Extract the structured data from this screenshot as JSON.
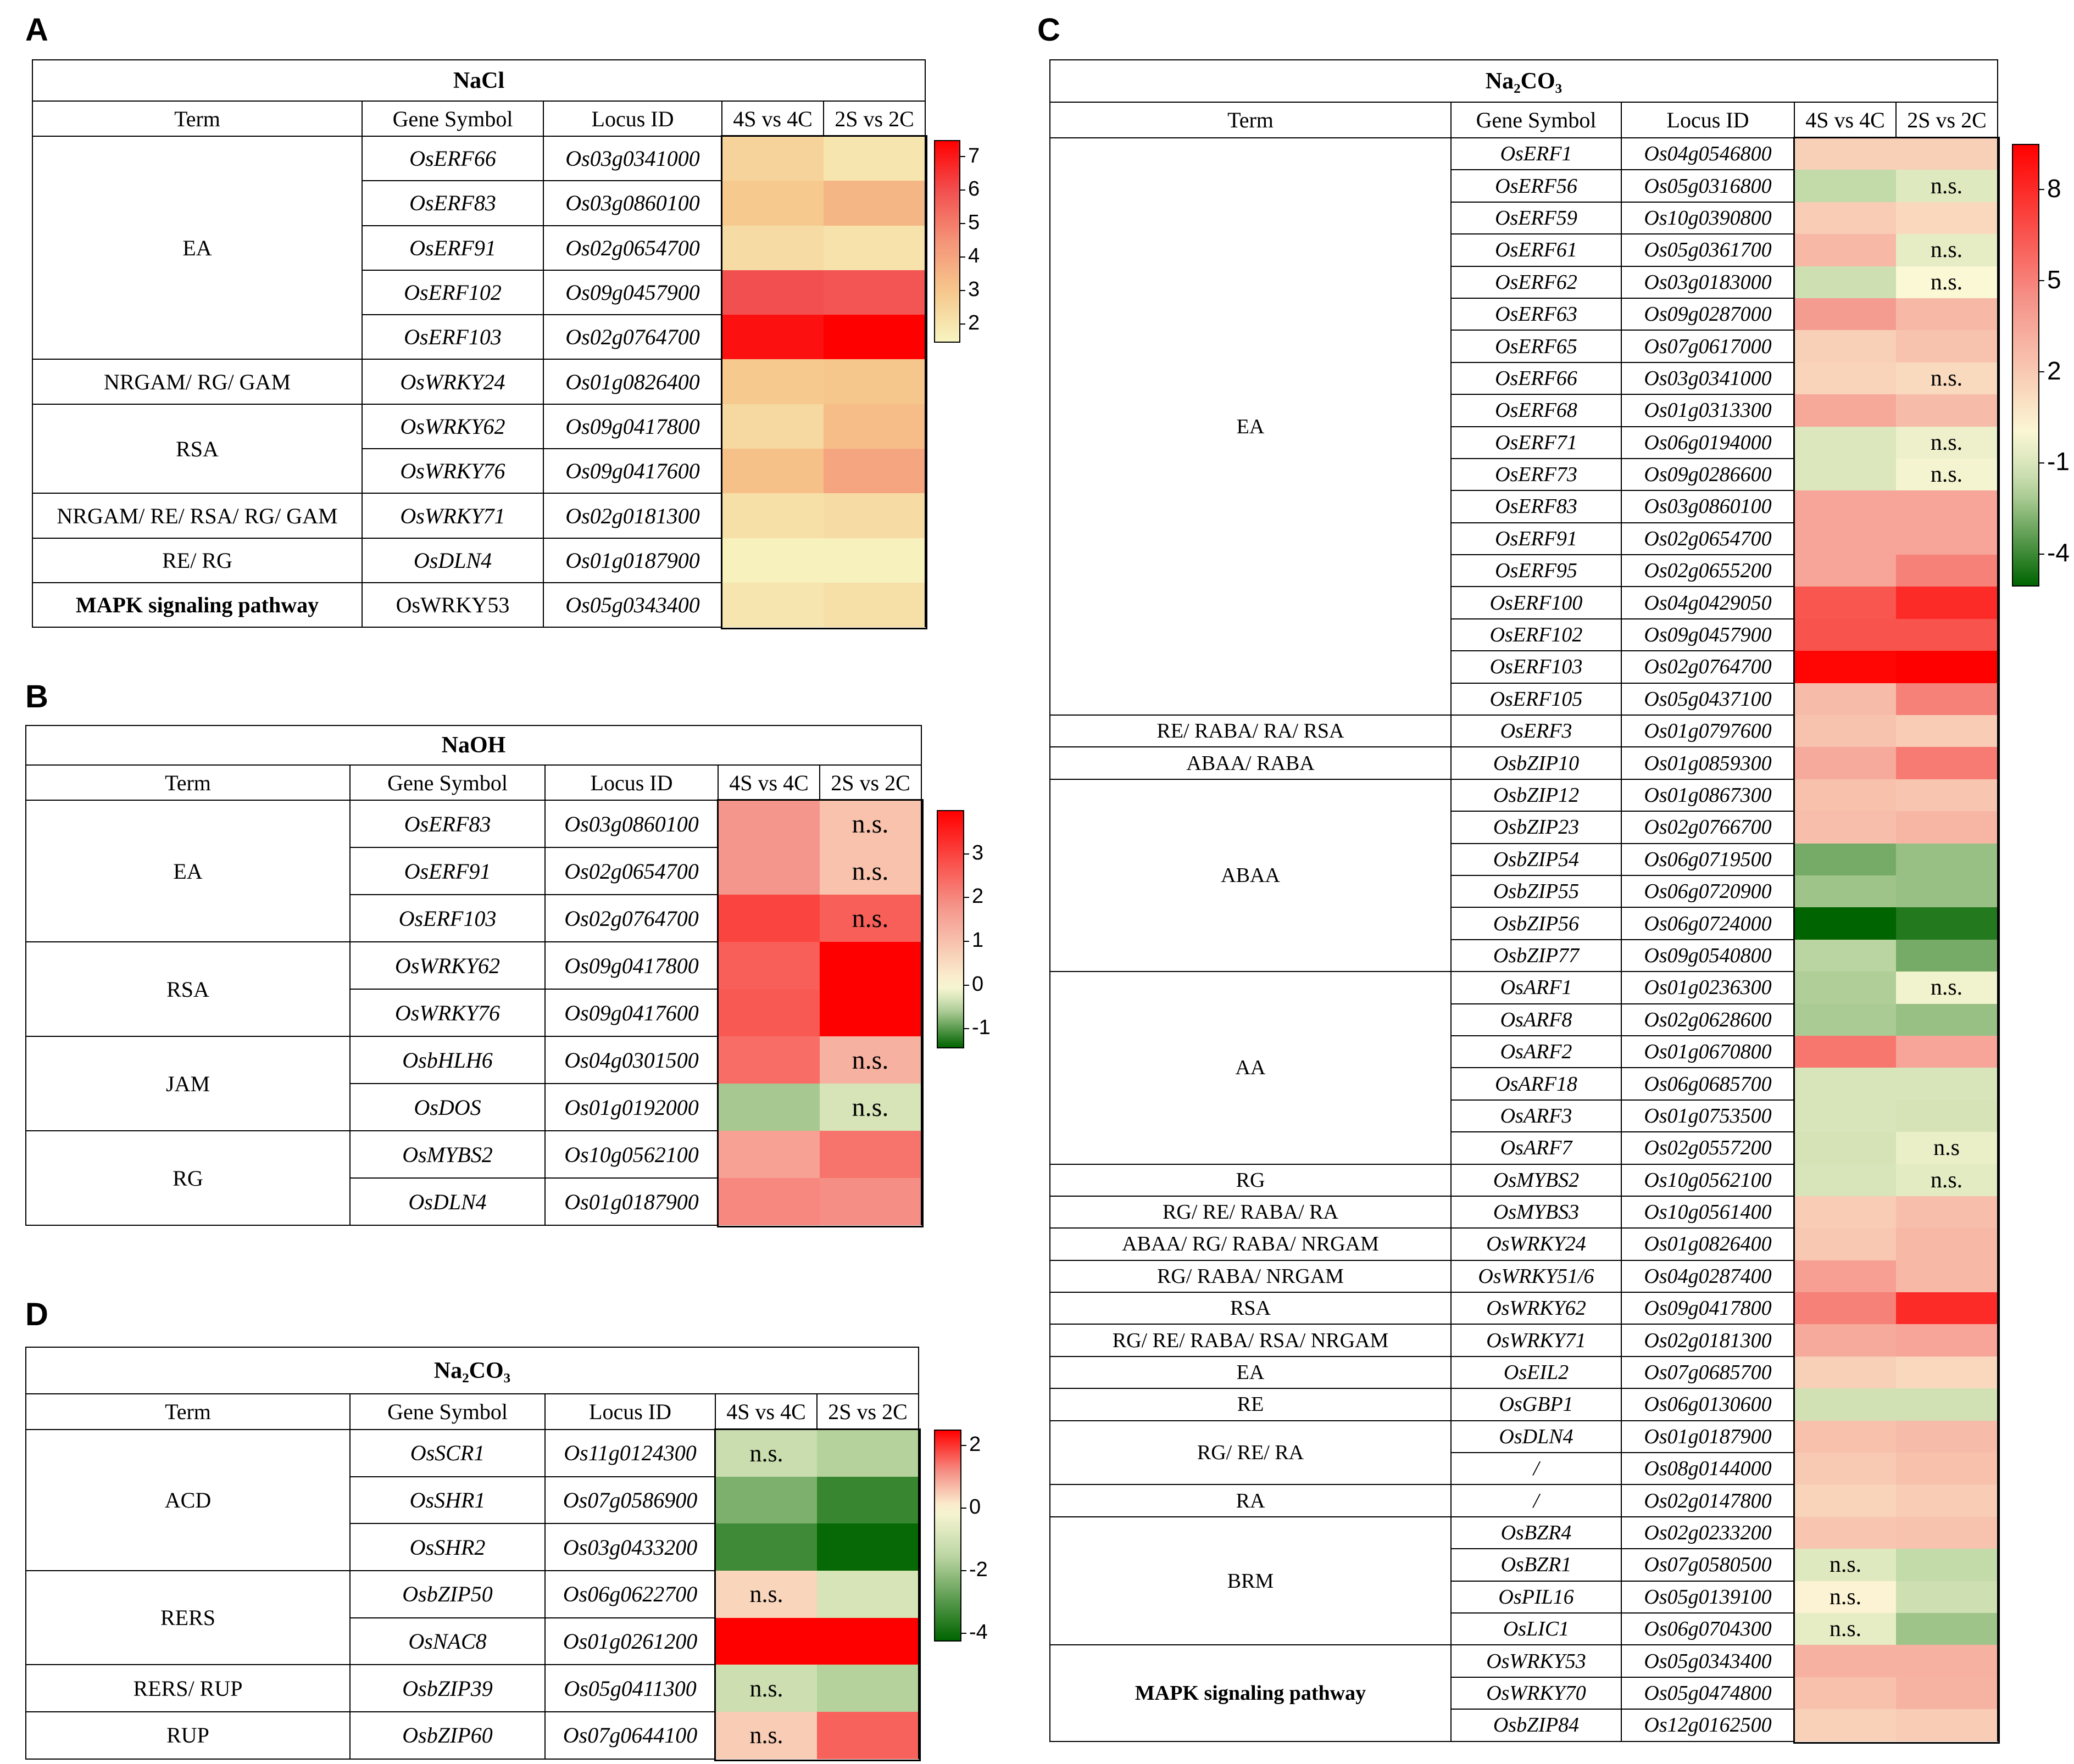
{
  "colors": {
    "pos_scale": [
      "#f7f4c0",
      "#f6c78c",
      "#f49478",
      "#f25050",
      "#ff0000"
    ],
    "div_high": "#ff0000",
    "div_mid": "#fbf8d6",
    "div_low": "#006400"
  },
  "header": {
    "term": "Term",
    "gene": "Gene Symbol",
    "locus": "Locus ID",
    "c1": "4S vs 4C",
    "c2": "2S vs 2C"
  },
  "chart_data": [
    {
      "panel": "A",
      "type": "heatmap",
      "title": "NaCl",
      "colorbar": {
        "ticks": [
          7,
          6,
          5,
          4,
          3,
          2
        ],
        "min": 1.5,
        "max": 7.5,
        "scale": "sequential"
      },
      "terms": [
        {
          "label": "EA",
          "span": 5
        },
        {
          "label": "NRGAM/ RG/ GAM",
          "span": 1
        },
        {
          "label": "RSA",
          "span": 2
        },
        {
          "label": "NRGAM/ RE/  RSA/ RG/ GAM",
          "span": 1
        },
        {
          "label": "RE/ RG",
          "span": 1
        },
        {
          "label": "MAPK signaling pathway",
          "span": 1,
          "bold": true
        }
      ],
      "rows": [
        {
          "gene": "OsERF66",
          "locus": "Os03g0341000",
          "v1": 2.6,
          "v2": 2.0
        },
        {
          "gene": "OsERF83",
          "locus": "Os03g0860100",
          "v1": 2.9,
          "v2": 3.5
        },
        {
          "gene": "OsERF91",
          "locus": "Os02g0654700",
          "v1": 2.3,
          "v2": 2.1
        },
        {
          "gene": "OsERF102",
          "locus": "Os09g0457900",
          "v1": 6.0,
          "v2": 5.9
        },
        {
          "gene": "OsERF103",
          "locus": "Os02g0764700",
          "v1": 7.2,
          "v2": 7.5
        },
        {
          "gene": "OsWRKY24",
          "locus": "Os01g0826400",
          "v1": 2.9,
          "v2": 3.0
        },
        {
          "gene": "OsWRKY62",
          "locus": "Os09g0417800",
          "v1": 2.4,
          "v2": 3.3
        },
        {
          "gene": "OsWRKY76",
          "locus": "Os09g0417600",
          "v1": 3.2,
          "v2": 4.0
        },
        {
          "gene": "OsWRKY71",
          "locus": "Os02g0181300",
          "v1": 2.2,
          "v2": 2.3
        },
        {
          "gene": "OsDLN4",
          "locus": "Os01g0187900",
          "v1": 1.6,
          "v2": 1.6
        },
        {
          "gene": "OsWRKY53",
          "locus": "Os05g0343400",
          "v1": 2.0,
          "v2": 2.2,
          "gene_plain": true
        }
      ]
    },
    {
      "panel": "B",
      "type": "heatmap",
      "title": "NaOH",
      "colorbar": {
        "ticks": [
          3,
          2,
          1,
          0,
          -1
        ],
        "min": -1.4,
        "max": 4,
        "scale": "diverging"
      },
      "terms": [
        {
          "label": "EA",
          "span": 3
        },
        {
          "label": "RSA",
          "span": 2
        },
        {
          "label": "JAM",
          "span": 2
        },
        {
          "label": "RG",
          "span": 2
        }
      ],
      "rows": [
        {
          "gene": "OsERF83",
          "locus": "Os03g0860100",
          "v1": 1.8,
          "v2": 1.0,
          "ns2": "n.s."
        },
        {
          "gene": "OsERF91",
          "locus": "Os02g0654700",
          "v1": 1.8,
          "v2": 1.0,
          "ns2": "n.s."
        },
        {
          "gene": "OsERF103",
          "locus": "Os02g0764700",
          "v1": 3.0,
          "v2": 2.6,
          "ns2": "n.s."
        },
        {
          "gene": "OsWRKY62",
          "locus": "Os09g0417800",
          "v1": 2.6,
          "v2": 4.0
        },
        {
          "gene": "OsWRKY76",
          "locus": "Os09g0417600",
          "v1": 2.7,
          "v2": 4.0
        },
        {
          "gene": "OsbHLH6",
          "locus": "Os04g0301500",
          "v1": 2.4,
          "v2": 1.3,
          "ns2": "n.s."
        },
        {
          "gene": "OsDOS",
          "locus": "Os01g0192000",
          "v1": -0.6,
          "v2": -0.3,
          "ns2": "n.s."
        },
        {
          "gene": "OsMYBS2",
          "locus": "Os10g0562100",
          "v1": 1.6,
          "v2": 2.3
        },
        {
          "gene": "OsDLN4",
          "locus": "Os01g0187900",
          "v1": 2.0,
          "v2": 1.9
        }
      ]
    },
    {
      "panel": "C",
      "type": "heatmap",
      "title": "Na₂CO₃",
      "colorbar": {
        "ticks": [
          8,
          5,
          2,
          -1,
          -4
        ],
        "min": -5,
        "max": 9.5,
        "scale": "diverging"
      },
      "terms": [
        {
          "label": "EA",
          "span": 18
        },
        {
          "label": "RE/ RABA/ RA/ RSA",
          "span": 1
        },
        {
          "label": "ABAA/ RABA",
          "span": 1
        },
        {
          "label": "ABAA",
          "span": 6
        },
        {
          "label": "AA",
          "span": 6
        },
        {
          "label": "RG",
          "span": 1
        },
        {
          "label": "RG/ RE/ RABA/ RA",
          "span": 1
        },
        {
          "label": "ABAA/ RG/ RABA/ NRGAM",
          "span": 1
        },
        {
          "label": "RG/ RABA/ NRGAM",
          "span": 1
        },
        {
          "label": "RSA",
          "span": 1
        },
        {
          "label": "RG/ RE/ RABA/ RSA/  NRGAM",
          "span": 1
        },
        {
          "label": "EA",
          "span": 1
        },
        {
          "label": "RE",
          "span": 1
        },
        {
          "label": "RG/ RE/ RA",
          "span": 2
        },
        {
          "label": "RA",
          "span": 1
        },
        {
          "label": "BRM",
          "span": 4
        },
        {
          "label": "MAPK signaling pathway",
          "span": 3,
          "bold": true
        }
      ],
      "rows": [
        {
          "gene": "OsERF1",
          "locus": "Os04g0546800",
          "v1": 1.8,
          "v2": 1.8
        },
        {
          "gene": "OsERF56",
          "locus": "Os05g0316800",
          "v1": -1.6,
          "v2": -0.8,
          "ns2": "n.s."
        },
        {
          "gene": "OsERF59",
          "locus": "Os10g0390800",
          "v1": 1.9,
          "v2": 1.4
        },
        {
          "gene": "OsERF61",
          "locus": "Os05g0361700",
          "v1": 2.8,
          "v2": -0.6,
          "ns2": "n.s."
        },
        {
          "gene": "OsERF62",
          "locus": "Os03g0183000",
          "v1": -1.3,
          "v2": 0.0,
          "ns2": "n.s."
        },
        {
          "gene": "OsERF63",
          "locus": "Os09g0287000",
          "v1": 4.0,
          "v2": 2.8
        },
        {
          "gene": "OsERF65",
          "locus": "Os07g0617000",
          "v1": 1.8,
          "v2": 2.3
        },
        {
          "gene": "OsERF66",
          "locus": "Os03g0341000",
          "v1": 1.6,
          "v2": 1.3,
          "ns2": "n.s."
        },
        {
          "gene": "OsERF68",
          "locus": "Os01g0313300",
          "v1": 3.5,
          "v2": 2.6
        },
        {
          "gene": "OsERF71",
          "locus": "Os06g0194000",
          "v1": -0.9,
          "v2": -0.4,
          "ns2": "n.s."
        },
        {
          "gene": "OsERF73",
          "locus": "Os09g0286600",
          "v1": -0.9,
          "v2": -0.2,
          "ns2": "n.s."
        },
        {
          "gene": "OsERF83",
          "locus": "Os03g0860100",
          "v1": 3.6,
          "v2": 3.6
        },
        {
          "gene": "OsERF91",
          "locus": "Os02g0654700",
          "v1": 3.6,
          "v2": 3.6
        },
        {
          "gene": "OsERF95",
          "locus": "Os02g0655200",
          "v1": 3.6,
          "v2": 5.0
        },
        {
          "gene": "OsERF100",
          "locus": "Os04g0429050",
          "v1": 6.5,
          "v2": 8.0
        },
        {
          "gene": "OsERF102",
          "locus": "Os09g0457900",
          "v1": 6.6,
          "v2": 6.6
        },
        {
          "gene": "OsERF103",
          "locus": "Os02g0764700",
          "v1": 9.3,
          "v2": 9.5
        },
        {
          "gene": "OsERF105",
          "locus": "Os05g0437100",
          "v1": 2.6,
          "v2": 5.0
        },
        {
          "gene": "OsERF3",
          "locus": "Os01g0797600",
          "v1": 2.3,
          "v2": 1.9
        },
        {
          "gene": "OsbZIP10",
          "locus": "Os01g0859300",
          "v1": 3.4,
          "v2": 5.2
        },
        {
          "gene": "OsbZIP12",
          "locus": "Os01g0867300",
          "v1": 2.4,
          "v2": 2.2
        },
        {
          "gene": "OsbZIP23",
          "locus": "Os02g0766700",
          "v1": 2.5,
          "v2": 2.9
        },
        {
          "gene": "OsbZIP54",
          "locus": "Os06g0719500",
          "v1": -3.0,
          "v2": -2.4
        },
        {
          "gene": "OsbZIP55",
          "locus": "Os06g0720900",
          "v1": -2.3,
          "v2": -2.4
        },
        {
          "gene": "OsbZIP56",
          "locus": "Os06g0724000",
          "v1": -5.0,
          "v2": -4.4
        },
        {
          "gene": "OsbZIP77",
          "locus": "Os09g0540800",
          "v1": -1.8,
          "v2": -3.0
        },
        {
          "gene": "OsARF1",
          "locus": "Os01g0236300",
          "v1": -2.0,
          "v2": -0.3,
          "ns2": "n.s."
        },
        {
          "gene": "OsARF8",
          "locus": "Os02g0628600",
          "v1": -2.1,
          "v2": -2.4
        },
        {
          "gene": "OsARF2",
          "locus": "Os01g0670800",
          "v1": 5.4,
          "v2": 3.6
        },
        {
          "gene": "OsARF18",
          "locus": "Os06g0685700",
          "v1": -1.0,
          "v2": -1.0
        },
        {
          "gene": "OsARF3",
          "locus": "Os01g0753500",
          "v1": -1.0,
          "v2": -1.1
        },
        {
          "gene": "OsARF7",
          "locus": "Os02g0557200",
          "v1": -1.1,
          "v2": -0.5,
          "ns2": "n.s"
        },
        {
          "gene": "OsMYBS2",
          "locus": "Os10g0562100",
          "v1": -1.0,
          "v2": -0.7,
          "ns2": "n.s."
        },
        {
          "gene": "OsMYBS3",
          "locus": "Os10g0561400",
          "v1": 1.9,
          "v2": 2.5
        },
        {
          "gene": "OsWRKY24",
          "locus": "Os01g0826400",
          "v1": 2.1,
          "v2": 2.8
        },
        {
          "gene": "OsWRKY51/6",
          "locus": "Os04g0287400",
          "v1": 3.9,
          "v2": 2.8
        },
        {
          "gene": "OsWRKY62",
          "locus": "Os09g0417800",
          "v1": 5.0,
          "v2": 8.0
        },
        {
          "gene": "OsWRKY71",
          "locus": "Os02g0181300",
          "v1": 3.4,
          "v2": 3.6
        },
        {
          "gene": "OsEIL2",
          "locus": "Os07g0685700",
          "v1": 1.8,
          "v2": 1.4
        },
        {
          "gene": "OsGBP1",
          "locus": "Os06g0130600",
          "v1": -1.2,
          "v2": -1.2
        },
        {
          "gene": "OsDLN4",
          "locus": "Os01g0187900",
          "v1": 2.4,
          "v2": 2.6
        },
        {
          "gene": "/",
          "locus": "Os08g0144000",
          "v1": 2.0,
          "v2": 2.4
        },
        {
          "gene": "/",
          "locus": "Os02g0147800",
          "v1": 1.6,
          "v2": 1.9
        },
        {
          "gene": "OsBZR4",
          "locus": "Os02g0233200",
          "v1": 2.2,
          "v2": 2.3
        },
        {
          "gene": "OsBZR1",
          "locus": "Os07g0580500",
          "v1": -0.8,
          "v2": -1.6,
          "ns1": "n.s."
        },
        {
          "gene": "OsPIL16",
          "locus": "Os05g0139100",
          "v1": 0.2,
          "v2": -1.3,
          "ns1": "n.s."
        },
        {
          "gene": "OsLIC1",
          "locus": "Os06g0704300",
          "v1": -0.6,
          "v2": -2.3,
          "ns1": "n.s."
        },
        {
          "gene": "OsWRKY53",
          "locus": "Os05g0343400",
          "v1": 3.1,
          "v2": 3.1
        },
        {
          "gene": "OsWRKY70",
          "locus": "Os05g0474800",
          "v1": 2.4,
          "v2": 3.0
        },
        {
          "gene": "OsbZIP84",
          "locus": "Os12g0162500",
          "v1": 1.7,
          "v2": 1.9
        }
      ]
    },
    {
      "panel": "D",
      "type": "heatmap",
      "title": "Na₂CO₃",
      "colorbar": {
        "ticks": [
          2,
          0,
          -2,
          -4
        ],
        "min": -4.2,
        "max": 2.5,
        "scale": "diverging"
      },
      "terms": [
        {
          "label": "ACD",
          "span": 3
        },
        {
          "label": "RERS",
          "span": 2
        },
        {
          "label": "RERS/ RUP",
          "span": 1
        },
        {
          "label": "RUP",
          "span": 1
        }
      ],
      "rows": [
        {
          "gene": "OsSCR1",
          "locus": "Os11g0124300",
          "v1": -1.2,
          "v2": -1.6,
          "ns1": "n.s."
        },
        {
          "gene": "OsSHR1",
          "locus": "Os07g0586900",
          "v1": -2.4,
          "v2": -3.4
        },
        {
          "gene": "OsSHR2",
          "locus": "Os03g0433200",
          "v1": -3.3,
          "v2": -4.1
        },
        {
          "gene": "OsbZIP50",
          "locus": "Os06g0622700",
          "v1": 0.4,
          "v2": -0.9,
          "ns1": "n.s."
        },
        {
          "gene": "OsNAC8",
          "locus": "Os01g0261200",
          "v1": 2.5,
          "v2": 2.5
        },
        {
          "gene": "OsbZIP39",
          "locus": "Os05g0411300",
          "v1": -1.1,
          "v2": -1.6,
          "ns1": "n.s."
        },
        {
          "gene": "OsbZIP60",
          "locus": "Os07g0644100",
          "v1": 0.5,
          "v2": 1.6,
          "ns1": "n.s."
        }
      ]
    }
  ]
}
